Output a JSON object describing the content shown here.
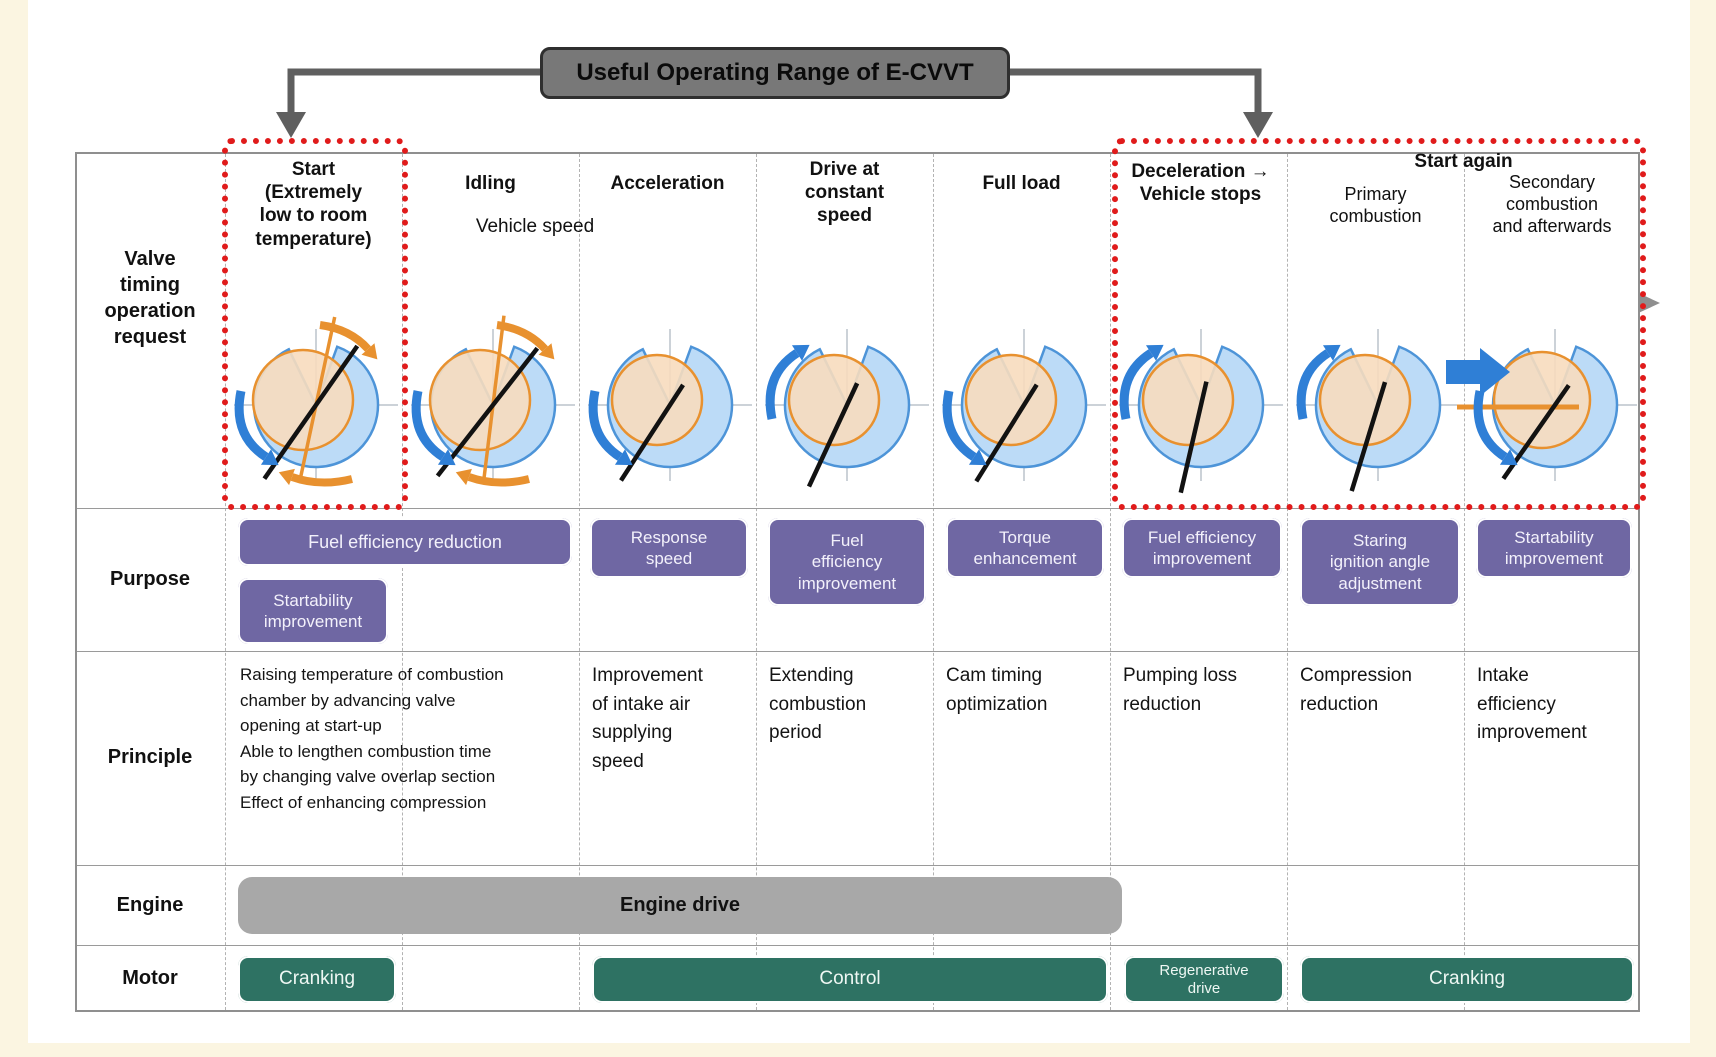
{
  "banner": {
    "title": "Useful Operating Range of E-CVVT"
  },
  "rows": {
    "valve_label": "Valve\ntiming\noperation\nrequest",
    "purpose_label": "Purpose",
    "principle_label": "Principle",
    "engine_label": "Engine",
    "motor_label": "Motor"
  },
  "header": {
    "vehicle_speed": "Vehicle speed",
    "start_again": "Start again",
    "columns": [
      {
        "label": "Start\n(Extremely\nlow to room\ntemperature)"
      },
      {
        "label": "Idling"
      },
      {
        "label": "Acceleration"
      },
      {
        "label": "Drive at\nconstant\nspeed"
      },
      {
        "label": "Full load"
      },
      {
        "label": "Deceleration →\nVehicle stops"
      },
      {
        "label": "Primary\ncombustion"
      },
      {
        "label": "Secondary\ncombustion\nand afterwards"
      }
    ]
  },
  "purpose": {
    "fuel_efficiency_reduction": "Fuel efficiency reduction",
    "startability_improvement_start": "Startability\nimprovement",
    "response_speed": "Response\nspeed",
    "fuel_efficiency_improvement_constant": "Fuel\nefficiency\nimprovement",
    "torque_enhancement": "Torque\nenhancement",
    "fuel_efficiency_improvement_decel": "Fuel efficiency\nimprovement",
    "staring_ignition_angle_adjustment": "Staring\nignition angle\nadjustment",
    "startability_improvement_again": "Startability\nimprovement"
  },
  "principle": {
    "start": "Raising temperature of combustion\nchamber by advancing valve\nopening at start-up\nAble to lengthen combustion time\nby changing valve overlap section\nEffect of enhancing compression",
    "acceleration": "Improvement\nof intake air\nsupplying\nspeed",
    "constant_speed": "Extending\ncombustion\nperiod",
    "full_load": "Cam timing\noptimization",
    "deceleration": "Pumping loss\nreduction",
    "primary_combustion": "Compression\nreduction",
    "secondary_combustion": "Intake\nefficiency\nimprovement"
  },
  "engine": {
    "drive": "Engine drive"
  },
  "motor": {
    "cranking_start": "Cranking",
    "control": "Control",
    "regenerative_drive": "Regenerative\ndrive",
    "cranking_again": "Cranking"
  },
  "colors": {
    "purpose_badge": "#6f67a3",
    "motor_badge": "#2e7263",
    "engine_bar": "#a8a8a8",
    "highlight_border": "#e01b1b",
    "valve_blue_fill": "#bcdbf7",
    "valve_blue_stroke": "#4d94d8",
    "valve_peach_fill": "#f7dbbe",
    "valve_orange": "#e8912f",
    "blue_arrow": "#2f7fd6",
    "speed_area_fill": "#f3edc0"
  },
  "valve_icons": [
    {
      "name": "valve-diagram-start-icon",
      "line_angle": 215,
      "line_through": true,
      "blue_arrow": "down",
      "orange_arrows": true,
      "orange_line": 12,
      "inner_r": 50
    },
    {
      "name": "valve-diagram-idling-icon",
      "line_angle": 218,
      "line_through": true,
      "blue_arrow": "down",
      "orange_arrows": true,
      "orange_line": 7,
      "inner_r": 50
    },
    {
      "name": "valve-diagram-acceleration-icon",
      "line_angle": 213,
      "line_through": false,
      "blue_arrow": "down",
      "orange_arrows": false,
      "inner_r": 45
    },
    {
      "name": "valve-diagram-constant-icon",
      "line_angle": 205,
      "line_through": false,
      "blue_arrow": "up",
      "orange_arrows": false,
      "inner_r": 45
    },
    {
      "name": "valve-diagram-fullload-icon",
      "line_angle": 212,
      "line_through": false,
      "blue_arrow": "down",
      "orange_arrows": false,
      "inner_r": 45
    },
    {
      "name": "valve-diagram-deceleration-icon",
      "line_angle": 193,
      "line_through": false,
      "blue_arrow": "up",
      "orange_arrows": false,
      "inner_r": 45
    },
    {
      "name": "valve-diagram-primary-icon",
      "line_angle": 197,
      "line_through": false,
      "blue_arrow": "up",
      "orange_arrows": false,
      "inner_r": 45
    },
    {
      "name": "valve-diagram-secondary-icon",
      "line_angle": 215,
      "line_through": false,
      "blue_arrow": "down",
      "orange_arrows": false,
      "orange_hline": true,
      "inner_r": 48
    }
  ]
}
